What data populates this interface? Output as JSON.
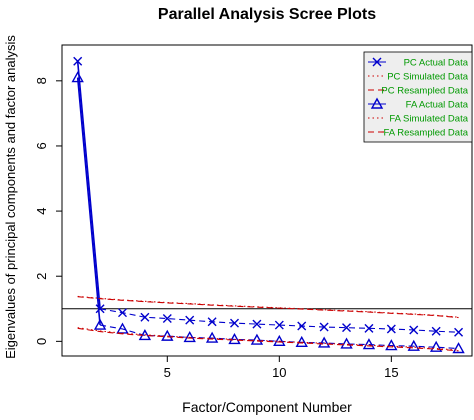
{
  "chart_data": {
    "type": "line",
    "title": "Parallel Analysis Scree Plots",
    "xlabel": "Factor/Component Number",
    "ylabel": "Eigenvalues of principal components and factor analysis",
    "xlim": [
      0.3,
      18.6
    ],
    "ylim": [
      -0.45,
      9.1
    ],
    "x_ticks": [
      5,
      10,
      15
    ],
    "y_ticks": [
      0,
      2,
      4,
      6,
      8
    ],
    "reference_line": 1,
    "legend_position": "top-right",
    "x": [
      1,
      2,
      3,
      4,
      5,
      6,
      7,
      8,
      9,
      10,
      11,
      12,
      13,
      14,
      15,
      16,
      17,
      18
    ],
    "series": [
      {
        "name": "PC  Actual Data",
        "style": "solid",
        "marker": "x",
        "color": "#0000cc",
        "values": [
          8.6,
          1.0,
          0.88,
          0.74,
          0.7,
          0.65,
          0.6,
          0.56,
          0.53,
          0.5,
          0.47,
          0.44,
          0.42,
          0.4,
          0.38,
          0.35,
          0.31,
          0.28
        ]
      },
      {
        "name": "PC  Simulated Data",
        "style": "dotted",
        "marker": "none",
        "color": "#cc0000",
        "values": [
          1.38,
          1.32,
          1.27,
          1.23,
          1.19,
          1.16,
          1.12,
          1.09,
          1.06,
          1.03,
          1.0,
          0.97,
          0.94,
          0.91,
          0.87,
          0.84,
          0.8,
          0.74
        ]
      },
      {
        "name": "PC  Resampled Data",
        "style": "dashed",
        "marker": "none",
        "color": "#cc0000",
        "values": [
          1.37,
          1.31,
          1.26,
          1.22,
          1.18,
          1.15,
          1.11,
          1.08,
          1.05,
          1.02,
          0.99,
          0.96,
          0.93,
          0.9,
          0.86,
          0.83,
          0.79,
          0.73
        ]
      },
      {
        "name": "FA  Actual Data",
        "style": "solid",
        "marker": "triangle",
        "color": "#0000cc",
        "values": [
          8.1,
          0.5,
          0.38,
          0.18,
          0.16,
          0.12,
          0.1,
          0.06,
          0.04,
          0.0,
          -0.03,
          -0.05,
          -0.08,
          -0.1,
          -0.13,
          -0.15,
          -0.18,
          -0.22
        ]
      },
      {
        "name": "FA  Simulated Data",
        "style": "dotted",
        "marker": "none",
        "color": "#cc0000",
        "values": [
          0.42,
          0.32,
          0.25,
          0.2,
          0.16,
          0.12,
          0.09,
          0.06,
          0.03,
          0.0,
          -0.03,
          -0.06,
          -0.09,
          -0.12,
          -0.15,
          -0.18,
          -0.22,
          -0.27
        ]
      },
      {
        "name": "FA  Resampled Data",
        "style": "dashed",
        "marker": "none",
        "color": "#cc0000",
        "values": [
          0.4,
          0.3,
          0.23,
          0.18,
          0.14,
          0.1,
          0.07,
          0.04,
          0.01,
          -0.02,
          -0.05,
          -0.08,
          -0.11,
          -0.14,
          -0.17,
          -0.2,
          -0.24,
          -0.29
        ]
      }
    ],
    "legend_text_color": "#009900"
  }
}
